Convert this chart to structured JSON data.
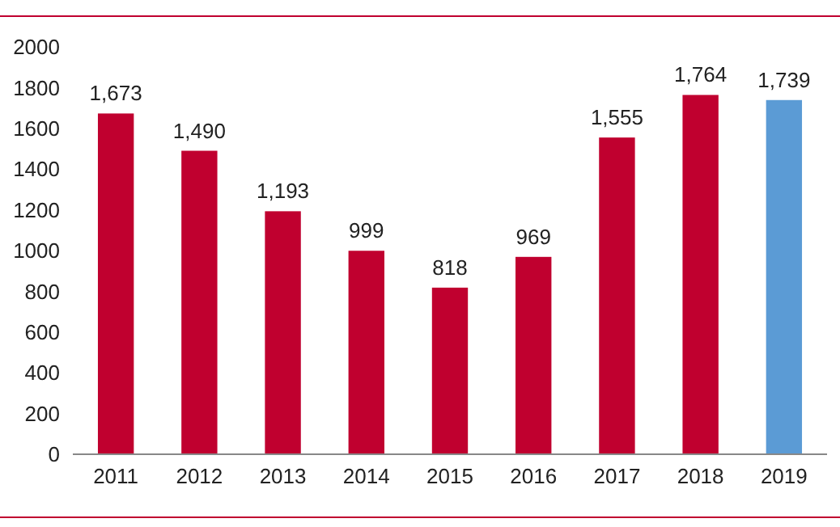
{
  "chart_data": {
    "type": "bar",
    "categories": [
      "2011",
      "2012",
      "2013",
      "2014",
      "2015",
      "2016",
      "2017",
      "2018",
      "2019"
    ],
    "values": [
      1673,
      1490,
      1193,
      999,
      818,
      969,
      1555,
      1764,
      1739
    ],
    "colors": [
      "#c0002f",
      "#c0002f",
      "#c0002f",
      "#c0002f",
      "#c0002f",
      "#c0002f",
      "#c0002f",
      "#c0002f",
      "#5b9bd5"
    ],
    "value_labels": [
      "1,673",
      "1,490",
      "1,193",
      "999",
      "818",
      "969",
      "1,555",
      "1,764",
      "1,739"
    ],
    "ylim": [
      0,
      2000
    ],
    "yticks": [
      0,
      200,
      400,
      600,
      800,
      1000,
      1200,
      1400,
      1600,
      1800,
      2000
    ],
    "grid": false
  }
}
